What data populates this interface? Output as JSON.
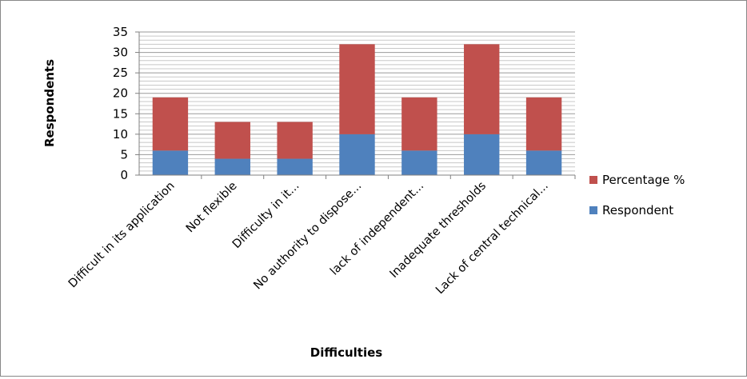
{
  "chart_data": {
    "type": "bar",
    "stacked": true,
    "title": "",
    "xlabel": "Difficulties",
    "ylabel": "Respondents",
    "ylim": [
      0,
      35
    ],
    "ytick_step": 5,
    "yticks": [
      "0",
      "5",
      "10",
      "15",
      "20",
      "25",
      "30",
      "35"
    ],
    "grid": true,
    "legend_position": "right",
    "categories": [
      "Difficult in its application",
      "Not flexible",
      "Difficulty in it...",
      "No authority to dispose...",
      "lack of independent...",
      "Inadequate thresholds",
      "Lack of central technical..."
    ],
    "series": [
      {
        "name": "Respondent",
        "color": "#4f81bd",
        "values": [
          6,
          4,
          4,
          10,
          6,
          10,
          6
        ]
      },
      {
        "name": "Percentage %",
        "color": "#c0504d",
        "values": [
          13,
          9,
          9,
          22,
          13,
          22,
          13
        ]
      }
    ]
  }
}
